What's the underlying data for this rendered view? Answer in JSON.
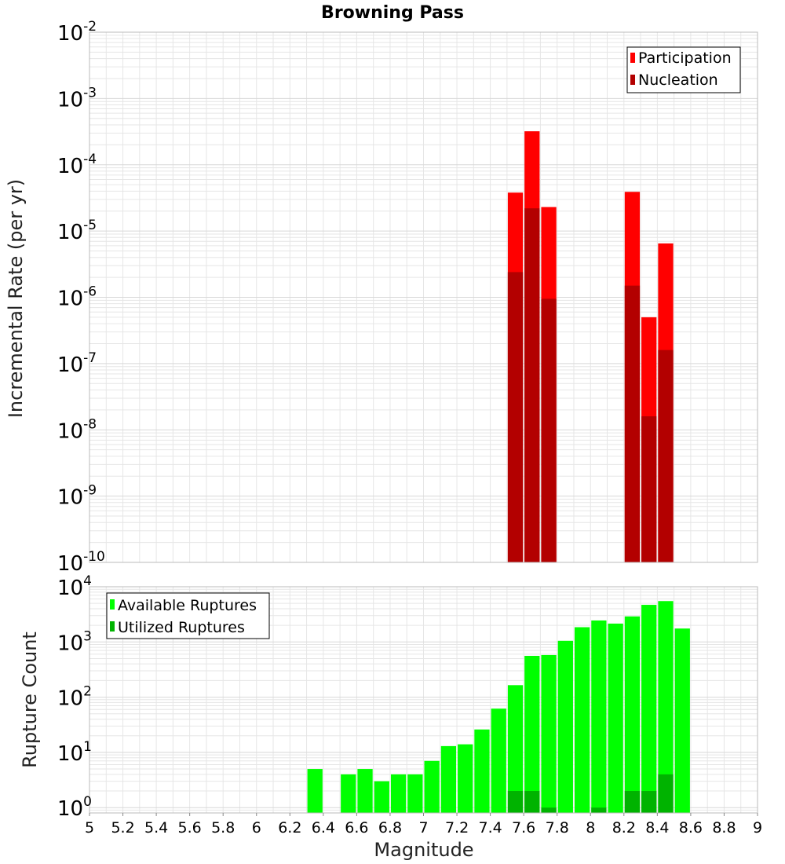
{
  "title": "Browning Pass",
  "colors": {
    "participation": "#ff0000",
    "nucleation": "#b30000",
    "available": "#00ff00",
    "utilized": "#00b300",
    "grid": "#e6e6e6",
    "frame": "#bbbbbb"
  },
  "chart_data": [
    {
      "type": "bar",
      "title": "Browning Pass",
      "ylabel": "Incremental Rate (per yr)",
      "xlabel": "",
      "yscale": "log",
      "ylim": [
        1e-10,
        0.01
      ],
      "xlim": [
        5,
        9
      ],
      "bin_width": 0.1,
      "ytick_exponents": [
        "-10",
        "-9",
        "-8",
        "-7",
        "-6",
        "-5",
        "-4",
        "-3",
        "-2"
      ],
      "ytick_base": "10",
      "legend_position": "top-right",
      "series": [
        {
          "name": "Participation",
          "x": [
            7.55,
            7.65,
            7.75,
            8.25,
            8.35,
            8.45
          ],
          "values": [
            3.8e-05,
            0.00032,
            2.3e-05,
            3.9e-05,
            5e-07,
            6.5e-06
          ]
        },
        {
          "name": "Nucleation",
          "x": [
            7.55,
            7.65,
            7.75,
            8.25,
            8.35,
            8.45
          ],
          "values": [
            2.4e-06,
            2.2e-05,
            9.5e-07,
            1.5e-06,
            1.6e-08,
            1.6e-07
          ]
        }
      ]
    },
    {
      "type": "bar",
      "title": "",
      "ylabel": "Rupture Count",
      "xlabel": "Magnitude",
      "yscale": "log",
      "ylim": [
        0.8,
        10000
      ],
      "xlim": [
        5,
        9
      ],
      "bin_width": 0.1,
      "ytick_exponents": [
        "0",
        "1",
        "2",
        "3",
        "4"
      ],
      "ytick_base": "10",
      "xtick_labels": [
        "5",
        "5.2",
        "5.4",
        "5.6",
        "5.8",
        "6",
        "6.2",
        "6.4",
        "6.6",
        "6.8",
        "7",
        "7.2",
        "7.4",
        "7.6",
        "7.8",
        "8",
        "8.2",
        "8.4",
        "8.6",
        "8.8",
        "9"
      ],
      "legend_position": "top-left",
      "series": [
        {
          "name": "Available Ruptures",
          "x": [
            6.35,
            6.55,
            6.65,
            6.75,
            6.85,
            6.95,
            7.05,
            7.15,
            7.25,
            7.35,
            7.45,
            7.55,
            7.65,
            7.75,
            7.85,
            8.05,
            7.95,
            8.15,
            8.25,
            8.35,
            8.45,
            8.55
          ],
          "values": [
            5,
            4,
            5,
            3,
            4,
            4,
            7,
            13,
            14,
            26,
            62,
            165,
            560,
            580,
            1050,
            2450,
            1850,
            2150,
            2900,
            4700,
            5500,
            1750
          ]
        },
        {
          "name": "Utilized Ruptures",
          "x": [
            7.55,
            7.65,
            7.75,
            8.05,
            8.25,
            8.35,
            8.45
          ],
          "values": [
            2,
            2,
            1,
            1,
            2,
            2,
            4
          ]
        }
      ]
    }
  ]
}
